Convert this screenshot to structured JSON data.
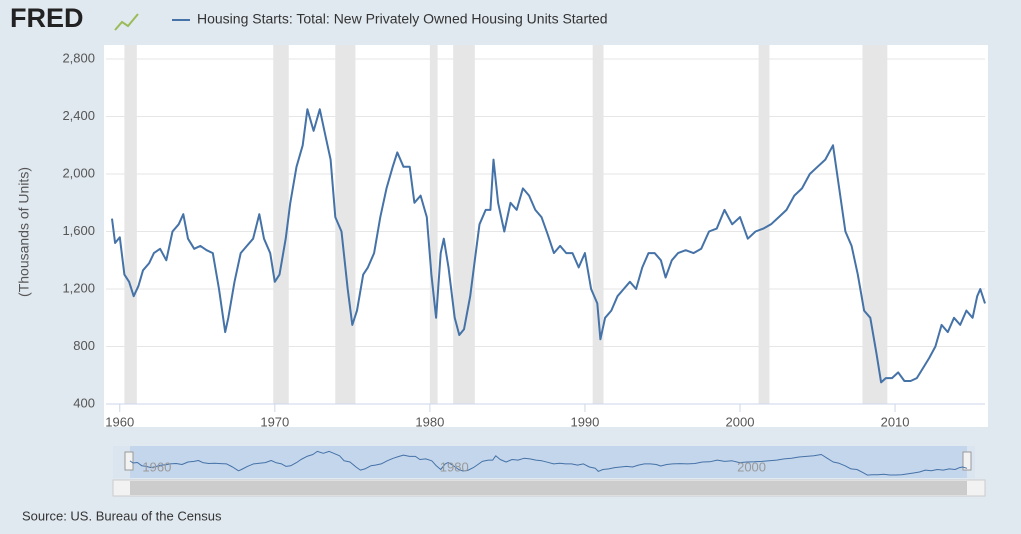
{
  "logo": "FRED",
  "source": "Source: US. Bureau of the Census",
  "chart_data": {
    "type": "line",
    "y_label": "(Thousands of Units)",
    "series": [
      {
        "name": "Housing Starts: Total: New Privately Owned Housing Units Started",
        "color": "#4572a7",
        "x": [
          1959.5,
          1959.7,
          1960.0,
          1960.3,
          1960.6,
          1960.9,
          1961.2,
          1961.5,
          1961.9,
          1962.2,
          1962.6,
          1963.0,
          1963.4,
          1963.8,
          1964.1,
          1964.4,
          1964.8,
          1965.2,
          1965.6,
          1966.0,
          1966.4,
          1966.8,
          1967.0,
          1967.4,
          1967.8,
          1968.2,
          1968.6,
          1969.0,
          1969.3,
          1969.7,
          1970.0,
          1970.3,
          1970.7,
          1971.0,
          1971.4,
          1971.8,
          1972.1,
          1972.5,
          1972.9,
          1973.2,
          1973.6,
          1973.9,
          1974.3,
          1974.7,
          1975.0,
          1975.3,
          1975.7,
          1976.0,
          1976.4,
          1976.8,
          1977.2,
          1977.6,
          1977.9,
          1978.3,
          1978.7,
          1979.0,
          1979.4,
          1979.8,
          1980.1,
          1980.4,
          1980.7,
          1980.9,
          1981.2,
          1981.6,
          1981.9,
          1982.2,
          1982.6,
          1982.9,
          1983.2,
          1983.6,
          1983.9,
          1984.1,
          1984.4,
          1984.8,
          1985.2,
          1985.6,
          1986.0,
          1986.4,
          1986.8,
          1987.2,
          1987.6,
          1988.0,
          1988.4,
          1988.8,
          1989.2,
          1989.6,
          1990.0,
          1990.4,
          1990.8,
          1991.0,
          1991.3,
          1991.7,
          1992.1,
          1992.5,
          1992.9,
          1993.3,
          1993.7,
          1994.1,
          1994.5,
          1994.9,
          1995.2,
          1995.6,
          1996.0,
          1996.5,
          1997.0,
          1997.5,
          1998.0,
          1998.5,
          1999.0,
          1999.5,
          2000.0,
          2000.5,
          2001.0,
          2001.5,
          2002.0,
          2002.5,
          2003.0,
          2003.5,
          2004.0,
          2004.5,
          2005.0,
          2005.5,
          2006.0,
          2006.4,
          2006.8,
          2007.2,
          2007.6,
          2008.0,
          2008.4,
          2008.8,
          2009.1,
          2009.4,
          2009.8,
          2010.2,
          2010.6,
          2011.0,
          2011.4,
          2011.8,
          2012.2,
          2012.6,
          2013.0,
          2013.4,
          2013.8,
          2014.2,
          2014.6,
          2015.0,
          2015.3,
          2015.5,
          2015.8
        ],
        "values": [
          1690,
          1520,
          1560,
          1300,
          1250,
          1150,
          1220,
          1330,
          1380,
          1450,
          1480,
          1400,
          1600,
          1650,
          1720,
          1550,
          1480,
          1500,
          1470,
          1450,
          1200,
          900,
          1000,
          1250,
          1450,
          1500,
          1550,
          1720,
          1550,
          1450,
          1250,
          1300,
          1550,
          1800,
          2050,
          2200,
          2450,
          2300,
          2450,
          2300,
          2100,
          1700,
          1600,
          1200,
          950,
          1050,
          1300,
          1350,
          1450,
          1700,
          1900,
          2050,
          2150,
          2050,
          2050,
          1800,
          1850,
          1700,
          1300,
          1000,
          1450,
          1550,
          1350,
          1000,
          880,
          920,
          1150,
          1400,
          1650,
          1750,
          1750,
          2100,
          1800,
          1600,
          1800,
          1750,
          1900,
          1850,
          1750,
          1700,
          1580,
          1450,
          1500,
          1450,
          1450,
          1350,
          1450,
          1200,
          1100,
          850,
          1000,
          1050,
          1150,
          1200,
          1250,
          1200,
          1350,
          1450,
          1450,
          1400,
          1280,
          1400,
          1450,
          1470,
          1450,
          1480,
          1600,
          1620,
          1750,
          1650,
          1700,
          1550,
          1600,
          1620,
          1650,
          1700,
          1750,
          1850,
          1900,
          2000,
          2050,
          2100,
          2200,
          1900,
          1600,
          1500,
          1300,
          1050,
          1000,
          750,
          550,
          580,
          580,
          620,
          560,
          560,
          580,
          650,
          720,
          800,
          950,
          900,
          1000,
          950,
          1050,
          1000,
          1150,
          1200,
          1100
        ]
      }
    ],
    "recessions": [
      [
        1960.3,
        1961.1
      ],
      [
        1969.9,
        1970.9
      ],
      [
        1973.9,
        1975.2
      ],
      [
        1980.0,
        1980.5
      ],
      [
        1981.5,
        1982.9
      ],
      [
        1990.5,
        1991.2
      ],
      [
        2001.2,
        2001.9
      ],
      [
        2007.9,
        2009.5
      ]
    ],
    "xlim": [
      1959.5,
      2015.8
    ],
    "xticks": [
      1960,
      1970,
      1980,
      1990,
      2000,
      2010
    ],
    "ylim": [
      400,
      2800
    ],
    "yticks": [
      400,
      800,
      {
        "value": 1200,
        "label": "1,200"
      },
      {
        "value": 1600,
        "label": "1,600"
      },
      {
        "value": 2000,
        "label": "2,000"
      },
      {
        "value": 2400,
        "label": "2,400"
      },
      {
        "value": 2800,
        "label": "2,800"
      }
    ],
    "grid": true,
    "navigator_ticks": [
      1960,
      1980,
      2000
    ]
  }
}
